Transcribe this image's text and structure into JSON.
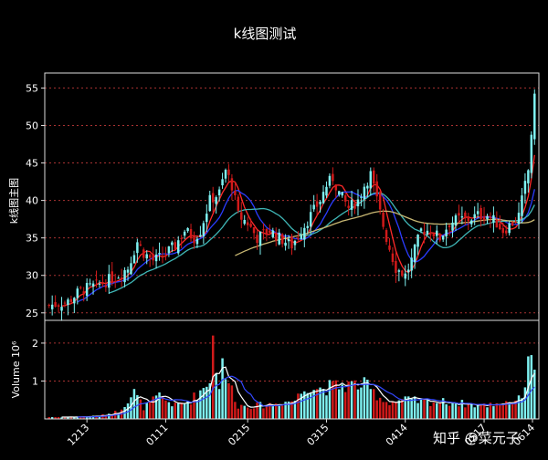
{
  "title": "k线图测试",
  "watermark": "知乎 @菜元子",
  "colors": {
    "background": "#000000",
    "up": "#7ff2f2",
    "down": "#d11a1a",
    "grid": "#a83232",
    "ma_red": "#ff2a2a",
    "ma_blue": "#2a3cff",
    "ma_teal": "#3fb6b6",
    "ma_khaki": "#c9b873",
    "vol_ma_white": "#ffffff",
    "vol_ma_blue": "#3348ff"
  },
  "chart_data": [
    {
      "type": "candlestick",
      "ylabel": "k线图主图",
      "ylim": [
        24,
        57
      ],
      "yticks": [
        25,
        30,
        35,
        40,
        45,
        50,
        55
      ],
      "grid": "horizontal dotted",
      "xticks": [
        "1213",
        "0111",
        "0215",
        "0315",
        "0414",
        "0517",
        "0614"
      ],
      "close_anchors": [
        [
          0,
          26
        ],
        [
          6,
          26.5
        ],
        [
          10,
          28
        ],
        [
          16,
          28.8
        ],
        [
          21,
          29.8
        ],
        [
          25,
          31
        ],
        [
          28,
          34.5
        ],
        [
          30,
          33
        ],
        [
          33,
          32
        ],
        [
          36,
          32.5
        ],
        [
          40,
          34
        ],
        [
          43,
          36
        ],
        [
          46,
          35
        ],
        [
          48,
          36
        ],
        [
          51,
          40
        ],
        [
          54,
          41
        ],
        [
          56,
          44
        ],
        [
          58,
          42
        ],
        [
          60,
          38
        ],
        [
          63,
          37
        ],
        [
          66,
          35
        ],
        [
          70,
          36
        ],
        [
          73,
          35
        ],
        [
          77,
          34
        ],
        [
          80,
          36
        ],
        [
          83,
          38
        ],
        [
          86,
          40
        ],
        [
          88,
          42
        ],
        [
          90,
          43
        ],
        [
          92,
          41
        ],
        [
          95,
          39
        ],
        [
          98,
          40
        ],
        [
          100,
          42
        ],
        [
          102,
          43.5
        ],
        [
          104,
          40
        ],
        [
          107,
          35
        ],
        [
          110,
          31
        ],
        [
          113,
          30
        ],
        [
          115,
          32
        ],
        [
          118,
          36
        ],
        [
          121,
          36
        ],
        [
          124,
          35
        ],
        [
          127,
          37
        ],
        [
          130,
          37.5
        ],
        [
          133,
          37.5
        ],
        [
          136,
          38
        ],
        [
          139,
          38
        ],
        [
          142,
          37
        ],
        [
          144,
          36
        ],
        [
          147,
          37
        ],
        [
          149,
          38
        ],
        [
          152,
          44
        ],
        [
          153,
          49
        ],
        [
          154,
          53.5
        ]
      ],
      "moving_averages": [
        {
          "window": 5,
          "color": "ma_red"
        },
        {
          "window": 10,
          "color": "ma_blue"
        },
        {
          "window": 20,
          "color": "ma_teal"
        },
        {
          "window": 60,
          "color": "ma_khaki"
        }
      ]
    },
    {
      "type": "bar",
      "ylabel": "Volume  10⁶",
      "ylim": [
        0,
        2.6
      ],
      "yticks": [
        1,
        2
      ],
      "grid": "horizontal dotted",
      "volume_anchors": [
        [
          0,
          0.05
        ],
        [
          8,
          0.05
        ],
        [
          16,
          0.08
        ],
        [
          22,
          0.2
        ],
        [
          27,
          0.7
        ],
        [
          30,
          0.3
        ],
        [
          35,
          0.6
        ],
        [
          40,
          0.35
        ],
        [
          45,
          0.5
        ],
        [
          50,
          0.9
        ],
        [
          52,
          1.3
        ],
        [
          55,
          0.8
        ],
        [
          57,
          1.0
        ],
        [
          60,
          0.35
        ],
        [
          66,
          0.35
        ],
        [
          72,
          0.4
        ],
        [
          78,
          0.5
        ],
        [
          82,
          0.9
        ],
        [
          86,
          0.8
        ],
        [
          90,
          0.85
        ],
        [
          95,
          0.9
        ],
        [
          100,
          0.9
        ],
        [
          103,
          0.7
        ],
        [
          107,
          0.45
        ],
        [
          113,
          0.5
        ],
        [
          120,
          0.45
        ],
        [
          126,
          0.45
        ],
        [
          132,
          0.4
        ],
        [
          138,
          0.35
        ],
        [
          144,
          0.45
        ],
        [
          149,
          0.5
        ],
        [
          151,
          0.9
        ],
        [
          153,
          1.4
        ],
        [
          154,
          1.3
        ]
      ],
      "spikes": [
        [
          52,
          2.2
        ],
        [
          55,
          1.6
        ],
        [
          100,
          1.1
        ],
        [
          152,
          1.65
        ],
        [
          154,
          1.3
        ]
      ],
      "moving_averages": [
        {
          "window": 5,
          "color": "vol_ma_white"
        },
        {
          "window": 10,
          "color": "vol_ma_blue"
        }
      ]
    }
  ]
}
